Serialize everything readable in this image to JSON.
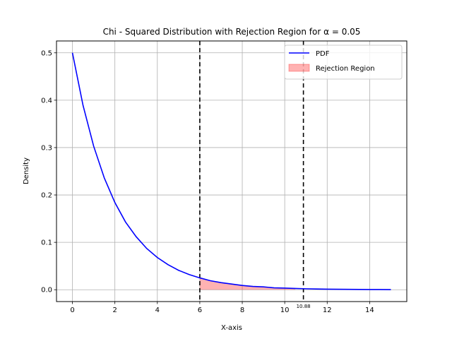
{
  "chart_data": {
    "type": "line",
    "title": "Chi - Squared Distribution with Rejection Region for α = 0.05",
    "xlabel": "X-axis",
    "ylabel": "Density",
    "xlim": [
      -0.75,
      15.75
    ],
    "ylim": [
      -0.025,
      0.525
    ],
    "xticks": [
      0,
      2,
      4,
      6,
      8,
      10,
      12,
      14
    ],
    "yticks": [
      0.0,
      0.1,
      0.2,
      0.3,
      0.4,
      0.5
    ],
    "xtick_labels": [
      "0",
      "2",
      "4",
      "6",
      "8",
      "10",
      "12",
      "14"
    ],
    "ytick_labels": [
      "0.0",
      "0.1",
      "0.2",
      "0.3",
      "0.4",
      "0.5"
    ],
    "grid": true,
    "legend_position": "top-right",
    "series": [
      {
        "name": "PDF",
        "color": "#0000ff",
        "x": [
          0,
          0.5,
          1,
          1.5,
          2,
          2.5,
          3,
          3.5,
          4,
          4.5,
          5,
          5.5,
          6,
          6.5,
          7,
          7.5,
          8,
          8.5,
          9,
          9.5,
          10,
          10.5,
          11,
          11.5,
          12,
          12.5,
          13,
          13.5,
          14,
          14.5,
          15
        ],
        "y": [
          0.5,
          0.389,
          0.303,
          0.236,
          0.184,
          0.143,
          0.112,
          0.087,
          0.068,
          0.053,
          0.041,
          0.032,
          0.025,
          0.019,
          0.015,
          0.012,
          0.009,
          0.007,
          0.006,
          0.004,
          0.0034,
          0.0026,
          0.002,
          0.0016,
          0.0012,
          0.001,
          0.0008,
          0.0006,
          0.0005,
          0.0004,
          0.0003
        ]
      }
    ],
    "rejection_region": {
      "name": "Rejection Region",
      "color": "#ff0000",
      "x_start": 6,
      "x_end": 10.88
    },
    "vlines": [
      {
        "x": 6,
        "color": "#000000"
      },
      {
        "x": 10.88,
        "color": "#000000"
      }
    ],
    "annotations": [
      {
        "text": "10.88",
        "x": 10.88
      }
    ]
  }
}
